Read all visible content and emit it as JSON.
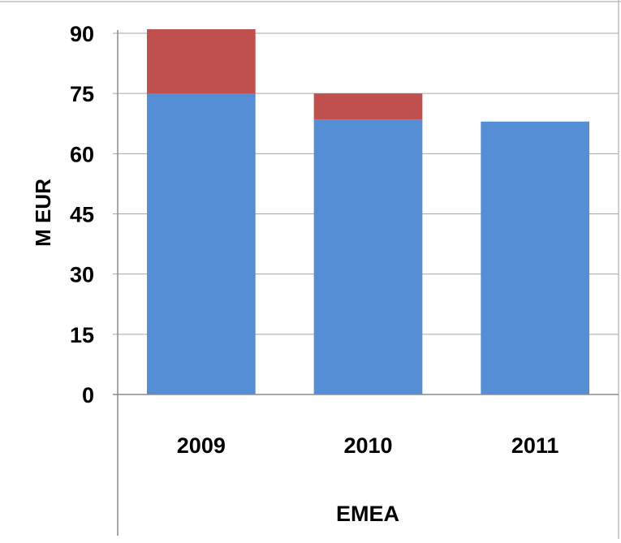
{
  "chart_data": {
    "type": "bar",
    "stacked": true,
    "categories": [
      "2009",
      "2010",
      "2011"
    ],
    "series": [
      {
        "values": [
          75,
          68.5,
          68
        ],
        "color": "#558ed5"
      },
      {
        "values": [
          16,
          6.5,
          0
        ],
        "color": "#c0504d"
      }
    ],
    "xlabel": "EMEA",
    "ylabel": "M EUR",
    "ylim": [
      0,
      90
    ],
    "yticks": [
      0,
      15,
      30,
      45,
      60,
      75,
      90
    ],
    "grid": true
  }
}
